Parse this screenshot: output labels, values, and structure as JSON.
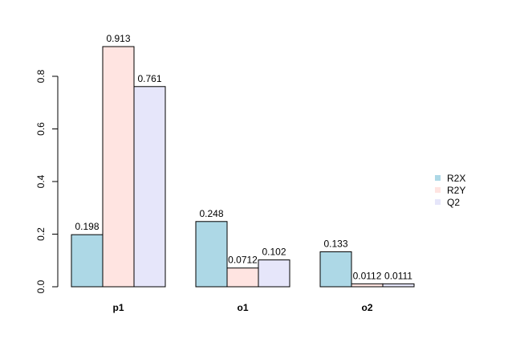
{
  "chart_data": {
    "type": "bar",
    "title": "",
    "xlabel": "",
    "ylabel": "",
    "ylim": [
      0,
      0.913
    ],
    "y_ticks": [
      "0.0",
      "0.2",
      "0.4",
      "0.6",
      "0.8"
    ],
    "categories": [
      "p1",
      "o1",
      "o2"
    ],
    "series": [
      {
        "name": "R2X",
        "color": "#add8e6",
        "values": [
          0.198,
          0.248,
          0.133
        ],
        "labels": [
          "0.198",
          "0.248",
          "0.133"
        ]
      },
      {
        "name": "R2Y",
        "color": "#ffe4e1",
        "values": [
          0.913,
          0.0712,
          0.0112
        ],
        "labels": [
          "0.913",
          "0.0712",
          "0.0112"
        ]
      },
      {
        "name": "Q2",
        "color": "#e6e6fa",
        "values": [
          0.761,
          0.102,
          0.0111
        ],
        "labels": [
          "0.761",
          "0.102",
          "0.0111"
        ]
      }
    ],
    "legend_position": "right"
  }
}
